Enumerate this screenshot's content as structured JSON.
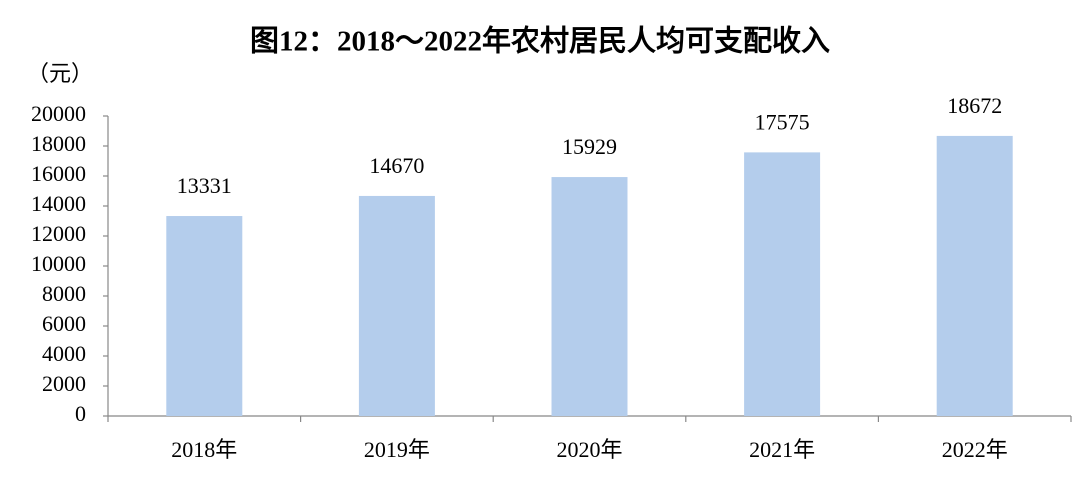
{
  "chart_data": {
    "type": "bar",
    "title": "图12：2018～2022年农村居民人均可支配收入",
    "y_label": "（元）",
    "categories": [
      "2018年",
      "2019年",
      "2020年",
      "2021年",
      "2022年"
    ],
    "values": [
      13331,
      14670,
      15929,
      17575,
      18672
    ],
    "color": "#b4cdec",
    "ylim": [
      0,
      20000
    ],
    "yticks": [
      0,
      2000,
      4000,
      6000,
      8000,
      10000,
      12000,
      14000,
      16000,
      18000,
      20000
    ],
    "grid": false
  }
}
